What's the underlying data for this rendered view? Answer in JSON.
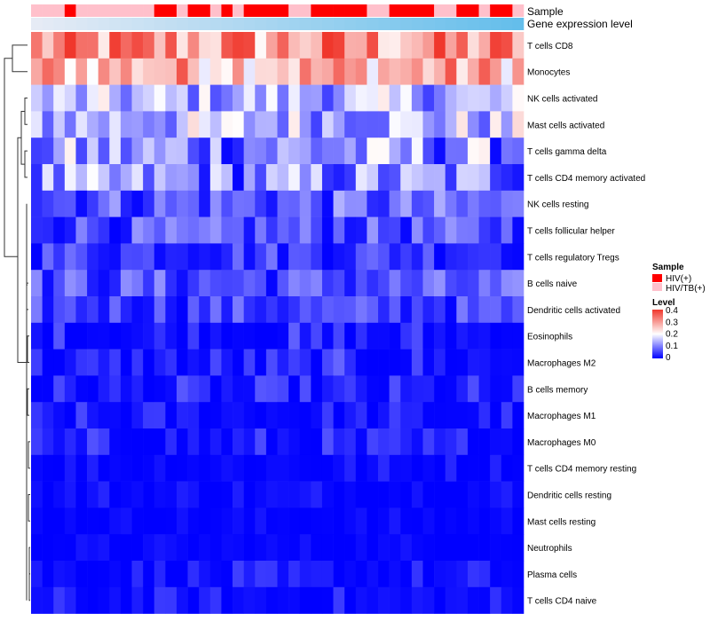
{
  "chart_data": {
    "type": "heatmap",
    "title": "",
    "annotation_labels": [
      "Sample",
      "Gene expression level"
    ],
    "rows": [
      "T cells CD8",
      "Monocytes",
      "NK cells activated",
      "Mast cells activated",
      "T cells gamma delta",
      "T cells CD4 memory activated",
      "NK cells resting",
      "T cells follicular helper",
      "T cells regulatory  Tregs",
      "B cells naive",
      "Dendritic cells activated",
      "Eosinophils",
      "Macrophages M2",
      "B cells memory",
      "Macrophages M1",
      "Macrophages M0",
      "T cells CD4 memory resting",
      "Dendritic cells resting",
      "Mast cells resting",
      "Neutrophils",
      "Plasma cells",
      "T cells CD4 naive"
    ],
    "n_columns": 44,
    "sample_groups": [
      "HIV/TB(+)",
      "HIV/TB(+)",
      "HIV/TB(+)",
      "HIV(+)",
      "HIV/TB(+)",
      "HIV/TB(+)",
      "HIV/TB(+)",
      "HIV/TB(+)",
      "HIV/TB(+)",
      "HIV/TB(+)",
      "HIV/TB(+)",
      "HIV(+)",
      "HIV(+)",
      "HIV/TB(+)",
      "HIV(+)",
      "HIV(+)",
      "HIV/TB(+)",
      "HIV(+)",
      "HIV/TB(+)",
      "HIV(+)",
      "HIV(+)",
      "HIV(+)",
      "HIV(+)",
      "HIV/TB(+)",
      "HIV/TB(+)",
      "HIV(+)",
      "HIV(+)",
      "HIV(+)",
      "HIV(+)",
      "HIV(+)",
      "HIV/TB(+)",
      "HIV/TB(+)",
      "HIV(+)",
      "HIV(+)",
      "HIV(+)",
      "HIV(+)",
      "HIV/TB(+)",
      "HIV/TB(+)",
      "HIV(+)",
      "HIV(+)",
      "HIV/TB(+)",
      "HIV(+)",
      "HIV(+)",
      "HIV/TB(+)"
    ],
    "row_ranges": [
      [
        0.18,
        0.42
      ],
      [
        0.18,
        0.38
      ],
      [
        0.05,
        0.22
      ],
      [
        0.05,
        0.24
      ],
      [
        0.0,
        0.22
      ],
      [
        0.0,
        0.2
      ],
      [
        0.0,
        0.14
      ],
      [
        0.0,
        0.12
      ],
      [
        0.0,
        0.1
      ],
      [
        0.0,
        0.12
      ],
      [
        0.0,
        0.1
      ],
      [
        0.0,
        0.08
      ],
      [
        0.0,
        0.08
      ],
      [
        0.0,
        0.07
      ],
      [
        0.0,
        0.06
      ],
      [
        0.0,
        0.07
      ],
      [
        0.0,
        0.04
      ],
      [
        0.0,
        0.04
      ],
      [
        0.0,
        0.02
      ],
      [
        0.0,
        0.02
      ],
      [
        0.0,
        0.05
      ],
      [
        0.0,
        0.05
      ]
    ],
    "color_scale": {
      "low": "#0000ff",
      "mid": "#ffffff",
      "high": "#f0372c",
      "domain": [
        0,
        0.4
      ]
    },
    "legend": {
      "sample_title": "Sample",
      "sample_entries": [
        {
          "label": "HIV(+)",
          "color": "#ff0000"
        },
        {
          "label": "HIV/TB(+)",
          "color": "#ffc0cb"
        }
      ],
      "level_title": "Level",
      "level_ticks": [
        "0.4",
        "0.3",
        "0.2",
        "0.1",
        "0"
      ]
    }
  }
}
